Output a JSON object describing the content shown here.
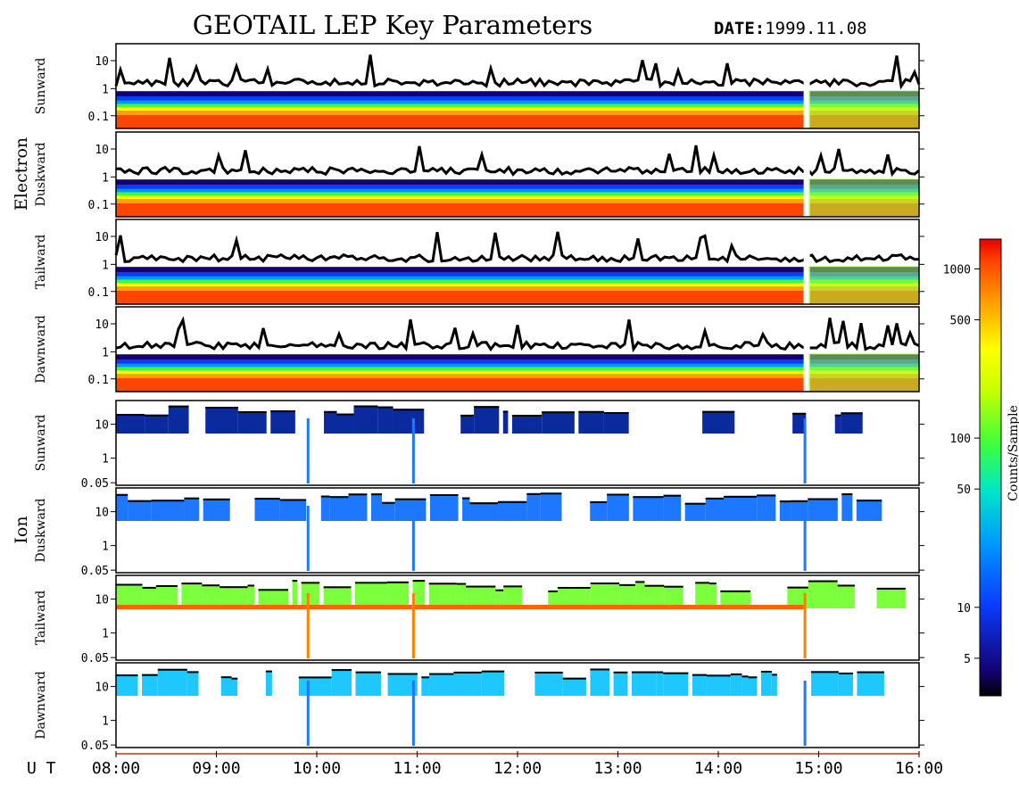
{
  "title": "GEOTAIL LEP Key Parameters",
  "date_label": "DATE:",
  "date_value": "1999.11.08",
  "groups": [
    "Electron",
    "Ion"
  ],
  "chart_data": {
    "type": "heatmap",
    "x_axis": {
      "prefix": "U T",
      "range": [
        "08:00",
        "16:00"
      ],
      "ticks": [
        "08:00",
        "09:00",
        "10:00",
        "11:00",
        "12:00",
        "13:00",
        "14:00",
        "15:00",
        "16:00"
      ]
    },
    "y_scale": "log",
    "panels": [
      {
        "group": "Electron",
        "label": "Sunward",
        "y_ticks": [
          "10",
          "1",
          "0.1"
        ]
      },
      {
        "group": "Electron",
        "label": "Duskward",
        "y_ticks": [
          "10",
          "1",
          "0.1"
        ]
      },
      {
        "group": "Electron",
        "label": "Tailward",
        "y_ticks": [
          "10",
          "1",
          "0.1"
        ]
      },
      {
        "group": "Electron",
        "label": "Dawnward",
        "y_ticks": [
          "10",
          "1",
          "0.1"
        ]
      },
      {
        "group": "Ion",
        "label": "Sunward",
        "y_ticks": [
          "10",
          "1",
          "0.05"
        ]
      },
      {
        "group": "Ion",
        "label": "Duskward",
        "y_ticks": [
          "10",
          "1",
          "0.05"
        ]
      },
      {
        "group": "Ion",
        "label": "Tailward",
        "y_ticks": [
          "10",
          "1",
          "0.05"
        ]
      },
      {
        "group": "Ion",
        "label": "Dawnward",
        "y_ticks": [
          "10",
          "1",
          "0.05"
        ]
      }
    ],
    "colorbar": {
      "label": "Counts/Sample",
      "scale": "log",
      "range": [
        3,
        1500
      ],
      "ticks": [
        5,
        10,
        50,
        100,
        500,
        1000
      ]
    }
  }
}
